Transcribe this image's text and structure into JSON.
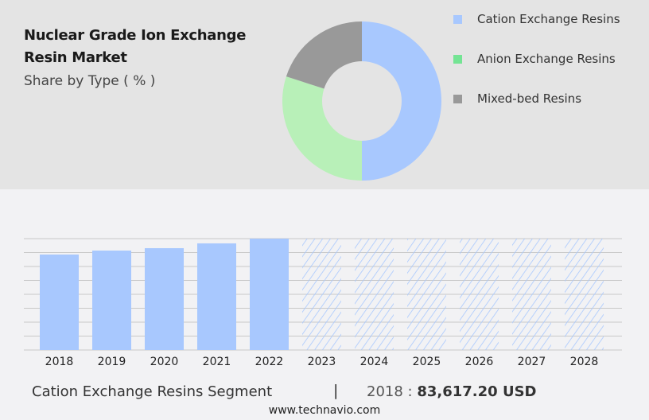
{
  "header": {
    "title": "Nuclear Grade Ion Exchange Resin Market",
    "subtitle": "Share by Type ( % )"
  },
  "chart_data": [
    {
      "type": "pie",
      "variant": "donut",
      "legend_position": "right",
      "categories": [
        "Cation Exchange Resins",
        "Anion Exchange Resins",
        "Mixed-bed Resins"
      ],
      "values": [
        50,
        30,
        20
      ],
      "colors": [
        "#a8c8fe",
        "#b8f0b8",
        "#999999"
      ],
      "legend_colors": [
        "#a8c8fe",
        "#74e494",
        "#999999"
      ]
    },
    {
      "type": "bar",
      "grid": true,
      "categories": [
        "2018",
        "2019",
        "2020",
        "2021",
        "2022",
        "2023",
        "2024",
        "2025",
        "2026",
        "2027",
        "2028"
      ],
      "values": [
        83617.2,
        87100,
        89200,
        93400,
        97550,
        null,
        null,
        null,
        null,
        null,
        null
      ],
      "forecast_years": [
        "2023",
        "2024",
        "2025",
        "2026",
        "2027",
        "2028"
      ],
      "ylim": [
        0,
        97550
      ],
      "color": "#a8c8fe"
    }
  ],
  "footer": {
    "segment": "Cation Exchange Resins Segment",
    "separator": "|",
    "year": "2018 :",
    "value": "83,617.20 USD",
    "site": "www.technavio.com"
  }
}
